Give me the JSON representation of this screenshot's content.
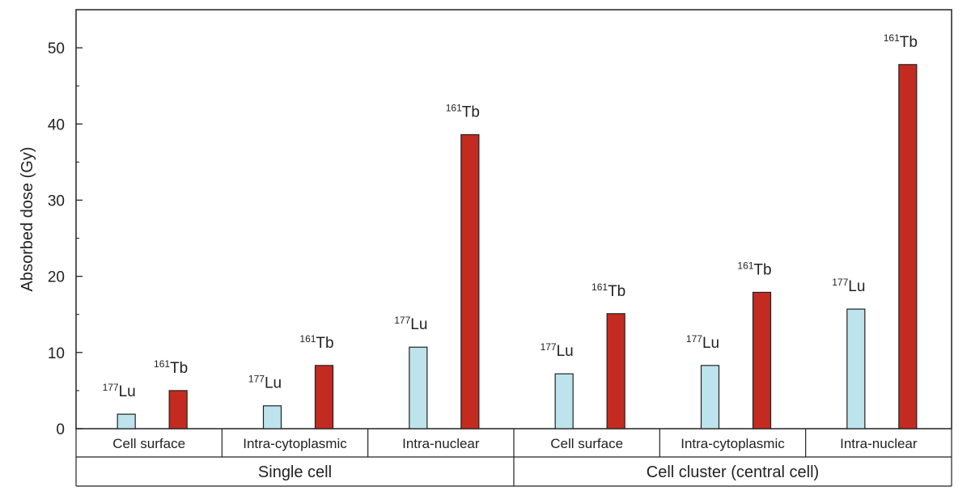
{
  "chart_data": {
    "type": "bar",
    "ylabel": "Absorbed dose (Gy)",
    "ylim": [
      0,
      55
    ],
    "yticks": [
      "0",
      "10",
      "20",
      "30",
      "40",
      "50"
    ],
    "groups": [
      "Single cell",
      "Cell cluster (central cell)"
    ],
    "categories": [
      "Cell surface",
      "Intra-cytoplasmic",
      "Intra-nuclear",
      "Cell surface",
      "Intra-cytoplasmic",
      "Intra-nuclear"
    ],
    "series": [
      {
        "mass": "177",
        "element": "Lu",
        "values": [
          1.9,
          3.0,
          10.7,
          7.2,
          8.3,
          15.7
        ]
      },
      {
        "mass": "161",
        "element": "Tb",
        "values": [
          5.0,
          8.3,
          38.6,
          15.1,
          17.9,
          47.8
        ]
      }
    ],
    "colors": {
      "lu_fill": "#bde3ec",
      "tb_fill": "#c32b20",
      "stroke": "#222222"
    },
    "grid": false,
    "legend": "none"
  }
}
